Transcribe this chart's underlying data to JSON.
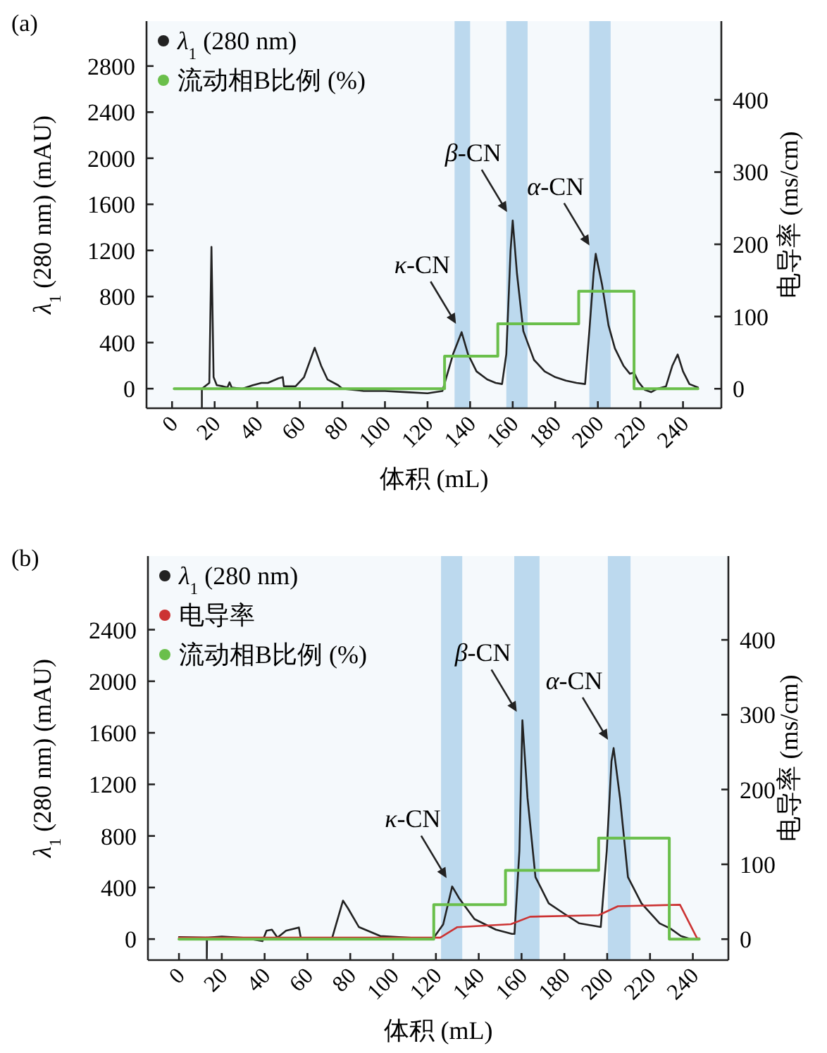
{
  "chart_data": [
    {
      "type": "line",
      "title": "(a)",
      "xlabel": "体积 (mL)",
      "ylabel": "*λ*$_{1}$ (280 nm) (mAU)",
      "y2label": "电导率 (ms/cm)",
      "xlim": [
        -12,
        258
      ],
      "xticks": [
        0,
        20,
        40,
        60,
        80,
        100,
        120,
        140,
        160,
        180,
        200,
        220,
        240
      ],
      "ylim": [
        -170,
        3190
      ],
      "yticks": [
        0,
        400,
        800,
        1200,
        1600,
        2000,
        2400,
        2800
      ],
      "y2lim": [
        -27,
        509
      ],
      "y2ticks": [
        0,
        100,
        200,
        300,
        400
      ],
      "legend": "top left",
      "series": [
        {
          "name": "*λ*$_{1}$ (280 nm)",
          "color": "#222222",
          "x": [
            14,
            14,
            17.5,
            18.5,
            19.5,
            21,
            24,
            26,
            27,
            28,
            33,
            38,
            42,
            45,
            50,
            52,
            52.5,
            58,
            62,
            67,
            70,
            73,
            78,
            80,
            90,
            100,
            110,
            120,
            127,
            132,
            136,
            139,
            143,
            148,
            152,
            155,
            157,
            159,
            160,
            162,
            165,
            170,
            175,
            180,
            185,
            190,
            194,
            196,
            198,
            199,
            202,
            205,
            208,
            212,
            215,
            217,
            219,
            222,
            225,
            228,
            232,
            235,
            237.5,
            240,
            243,
            247
          ],
          "values": [
            -160,
            0,
            50,
            1230,
            100,
            30,
            20,
            10,
            55,
            10,
            0,
            30,
            50,
            50,
            90,
            100,
            20,
            20,
            100,
            355,
            200,
            80,
            30,
            0,
            -20,
            -20,
            -30,
            -40,
            -20,
            300,
            490,
            300,
            150,
            80,
            50,
            40,
            300,
            1200,
            1460,
            1000,
            500,
            250,
            150,
            100,
            70,
            50,
            40,
            500,
            1000,
            1170,
            900,
            550,
            350,
            200,
            130,
            140,
            60,
            -10,
            -30,
            0,
            20,
            200,
            297,
            150,
            40,
            10
          ]
        },
        {
          "name": "流动相B比例 (%)",
          "color": "#6abf4b",
          "type": "step",
          "axis": "y2",
          "x": [
            1,
            128,
            153,
            191,
            217,
            247
          ],
          "values": [
            0,
            45,
            90,
            135,
            0,
            0
          ]
        }
      ],
      "bands": [
        {
          "axis": "x",
          "from": 132.7,
          "to": 140,
          "color": "#bcd9ee"
        },
        {
          "axis": "x",
          "from": 157,
          "to": 167,
          "color": "#bcd9ee"
        },
        {
          "axis": "x",
          "from": 196,
          "to": 206,
          "color": "#bcd9ee"
        }
      ],
      "annotations": [
        {
          "text": "*κ*-CN",
          "x": 136,
          "y": 490
        },
        {
          "text": "*β*-CN",
          "x": 160,
          "y": 1460
        },
        {
          "text": "*α*-CN",
          "x": 198.7,
          "y": 1170
        }
      ]
    },
    {
      "type": "line",
      "title": "(b)",
      "xlabel": "体积 (mL)",
      "ylabel": "*λ*$_{1}$ (280 nm) (mAU)",
      "y2label": "电导率 (ms/cm)",
      "xlim": [
        -14.5,
        256.6
      ],
      "xticks": [
        0,
        20,
        40,
        60,
        80,
        100,
        120,
        140,
        160,
        180,
        200,
        220,
        240
      ],
      "ylim": [
        -163,
        2971
      ],
      "yticks": [
        0,
        400,
        800,
        1200,
        1600,
        2000,
        2400
      ],
      "y2lim": [
        -28,
        512
      ],
      "y2ticks": [
        0,
        100,
        200,
        300,
        400
      ],
      "legend": "top left",
      "series": [
        {
          "name": "*λ*$_{1}$ (280 nm)",
          "color": "#222222",
          "x": [
            0,
            13,
            13,
            13.1,
            20,
            30,
            39,
            40.9,
            43.4,
            46,
            50,
            56,
            57,
            71.6,
            76.6,
            79,
            84,
            94,
            118.5,
            123.4,
            127.6,
            130.8,
            138,
            148,
            155.5,
            156.7,
            159,
            160.4,
            162.8,
            166.5,
            172.7,
            180,
            187,
            197,
            199.8,
            202,
            203,
            206,
            209.7,
            216,
            224.5,
            229.5,
            234.4,
            239,
            243
          ],
          "values": [
            16,
            12,
            -150,
            12,
            20,
            10,
            -16,
            65,
            73,
            12,
            65,
            90,
            0,
            12,
            298,
            237,
            94,
            24,
            0,
            114,
            408,
            318,
            155,
            73,
            40,
            40,
            685,
            1697,
            1093,
            481,
            277,
            196,
            122,
            94,
            685,
            1379,
            1481,
            1093,
            481,
            277,
            122,
            82,
            24,
            0,
            0
          ]
        },
        {
          "name": "电导率",
          "color": "#cc3333",
          "axis": "y2",
          "x": [
            0,
            122,
            130,
            155,
            164,
            196,
            205,
            234,
            242,
            243
          ],
          "values": [
            2,
            2,
            16,
            20,
            30,
            32,
            44,
            46,
            1,
            1
          ]
        },
        {
          "name": "流动相B比例 (%)",
          "color": "#6abf4b",
          "type": "step",
          "axis": "y2",
          "x": [
            0,
            119,
            152.5,
            196,
            229,
            243
          ],
          "values": [
            0,
            46,
            92,
            135,
            0,
            0
          ]
        }
      ],
      "bands": [
        {
          "axis": "x",
          "from": 122.4,
          "to": 132.3,
          "color": "#bcd9ee"
        },
        {
          "axis": "x",
          "from": 156.6,
          "to": 168.4,
          "color": "#bcd9ee"
        },
        {
          "axis": "x",
          "from": 200.3,
          "to": 210.9,
          "color": "#bcd9ee"
        }
      ],
      "annotations": [
        {
          "text": "*κ*-CN",
          "x": 127.6,
          "y": 408
        },
        {
          "text": "*β*-CN",
          "x": 160.4,
          "y": 1697
        },
        {
          "text": "*α*-CN",
          "x": 203,
          "y": 1481
        }
      ]
    }
  ]
}
